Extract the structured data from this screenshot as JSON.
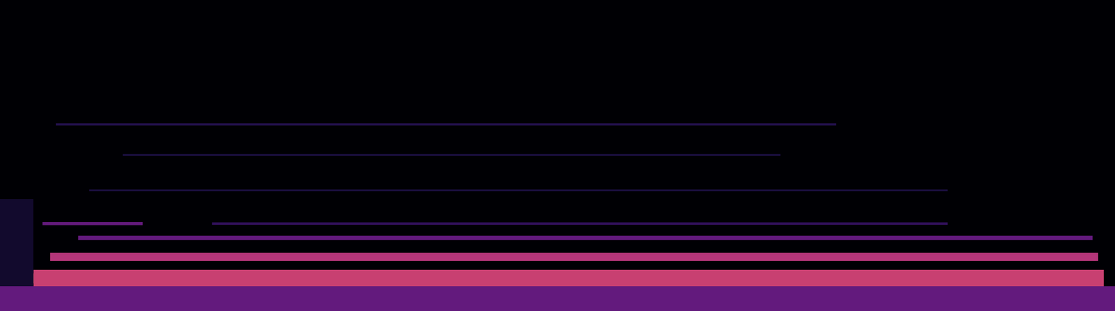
{
  "chart_data": {
    "type": "spectrogram",
    "xlim": [
      0,
      100
    ],
    "ylim": [
      0,
      100
    ],
    "tick_labels": false,
    "grid": false,
    "color_range": [
      0,
      1
    ],
    "bands": [
      {
        "x": [
          0,
          100
        ],
        "y": 4,
        "height": 8,
        "value": 0.3
      },
      {
        "x": [
          0,
          3
        ],
        "y": 22,
        "height": 28,
        "value": 0.08
      },
      {
        "x": [
          3,
          99
        ],
        "y": 10.5,
        "height": 5.5,
        "value": 0.55
      },
      {
        "x": [
          3,
          99
        ],
        "y": 10.5,
        "height": 3.2,
        "value": 0.85
      },
      {
        "x": [
          4.5,
          98.5
        ],
        "y": 17.4,
        "height": 2.6,
        "value": 0.5
      },
      {
        "x": [
          7,
          98
        ],
        "y": 23.5,
        "height": 1.4,
        "value": 0.3
      },
      {
        "x": [
          3.8,
          12.8
        ],
        "y": 28.1,
        "height": 1.0,
        "value": 0.3
      },
      {
        "x": [
          19,
          85
        ],
        "y": 28.1,
        "height": 0.8,
        "value": 0.18
      },
      {
        "x": [
          8,
          85
        ],
        "y": 38.8,
        "height": 0.6,
        "value": 0.12
      },
      {
        "x": [
          11,
          70
        ],
        "y": 50.2,
        "height": 0.6,
        "value": 0.12
      },
      {
        "x": [
          5,
          75
        ],
        "y": 60,
        "height": 0.7,
        "value": 0.14
      }
    ]
  }
}
